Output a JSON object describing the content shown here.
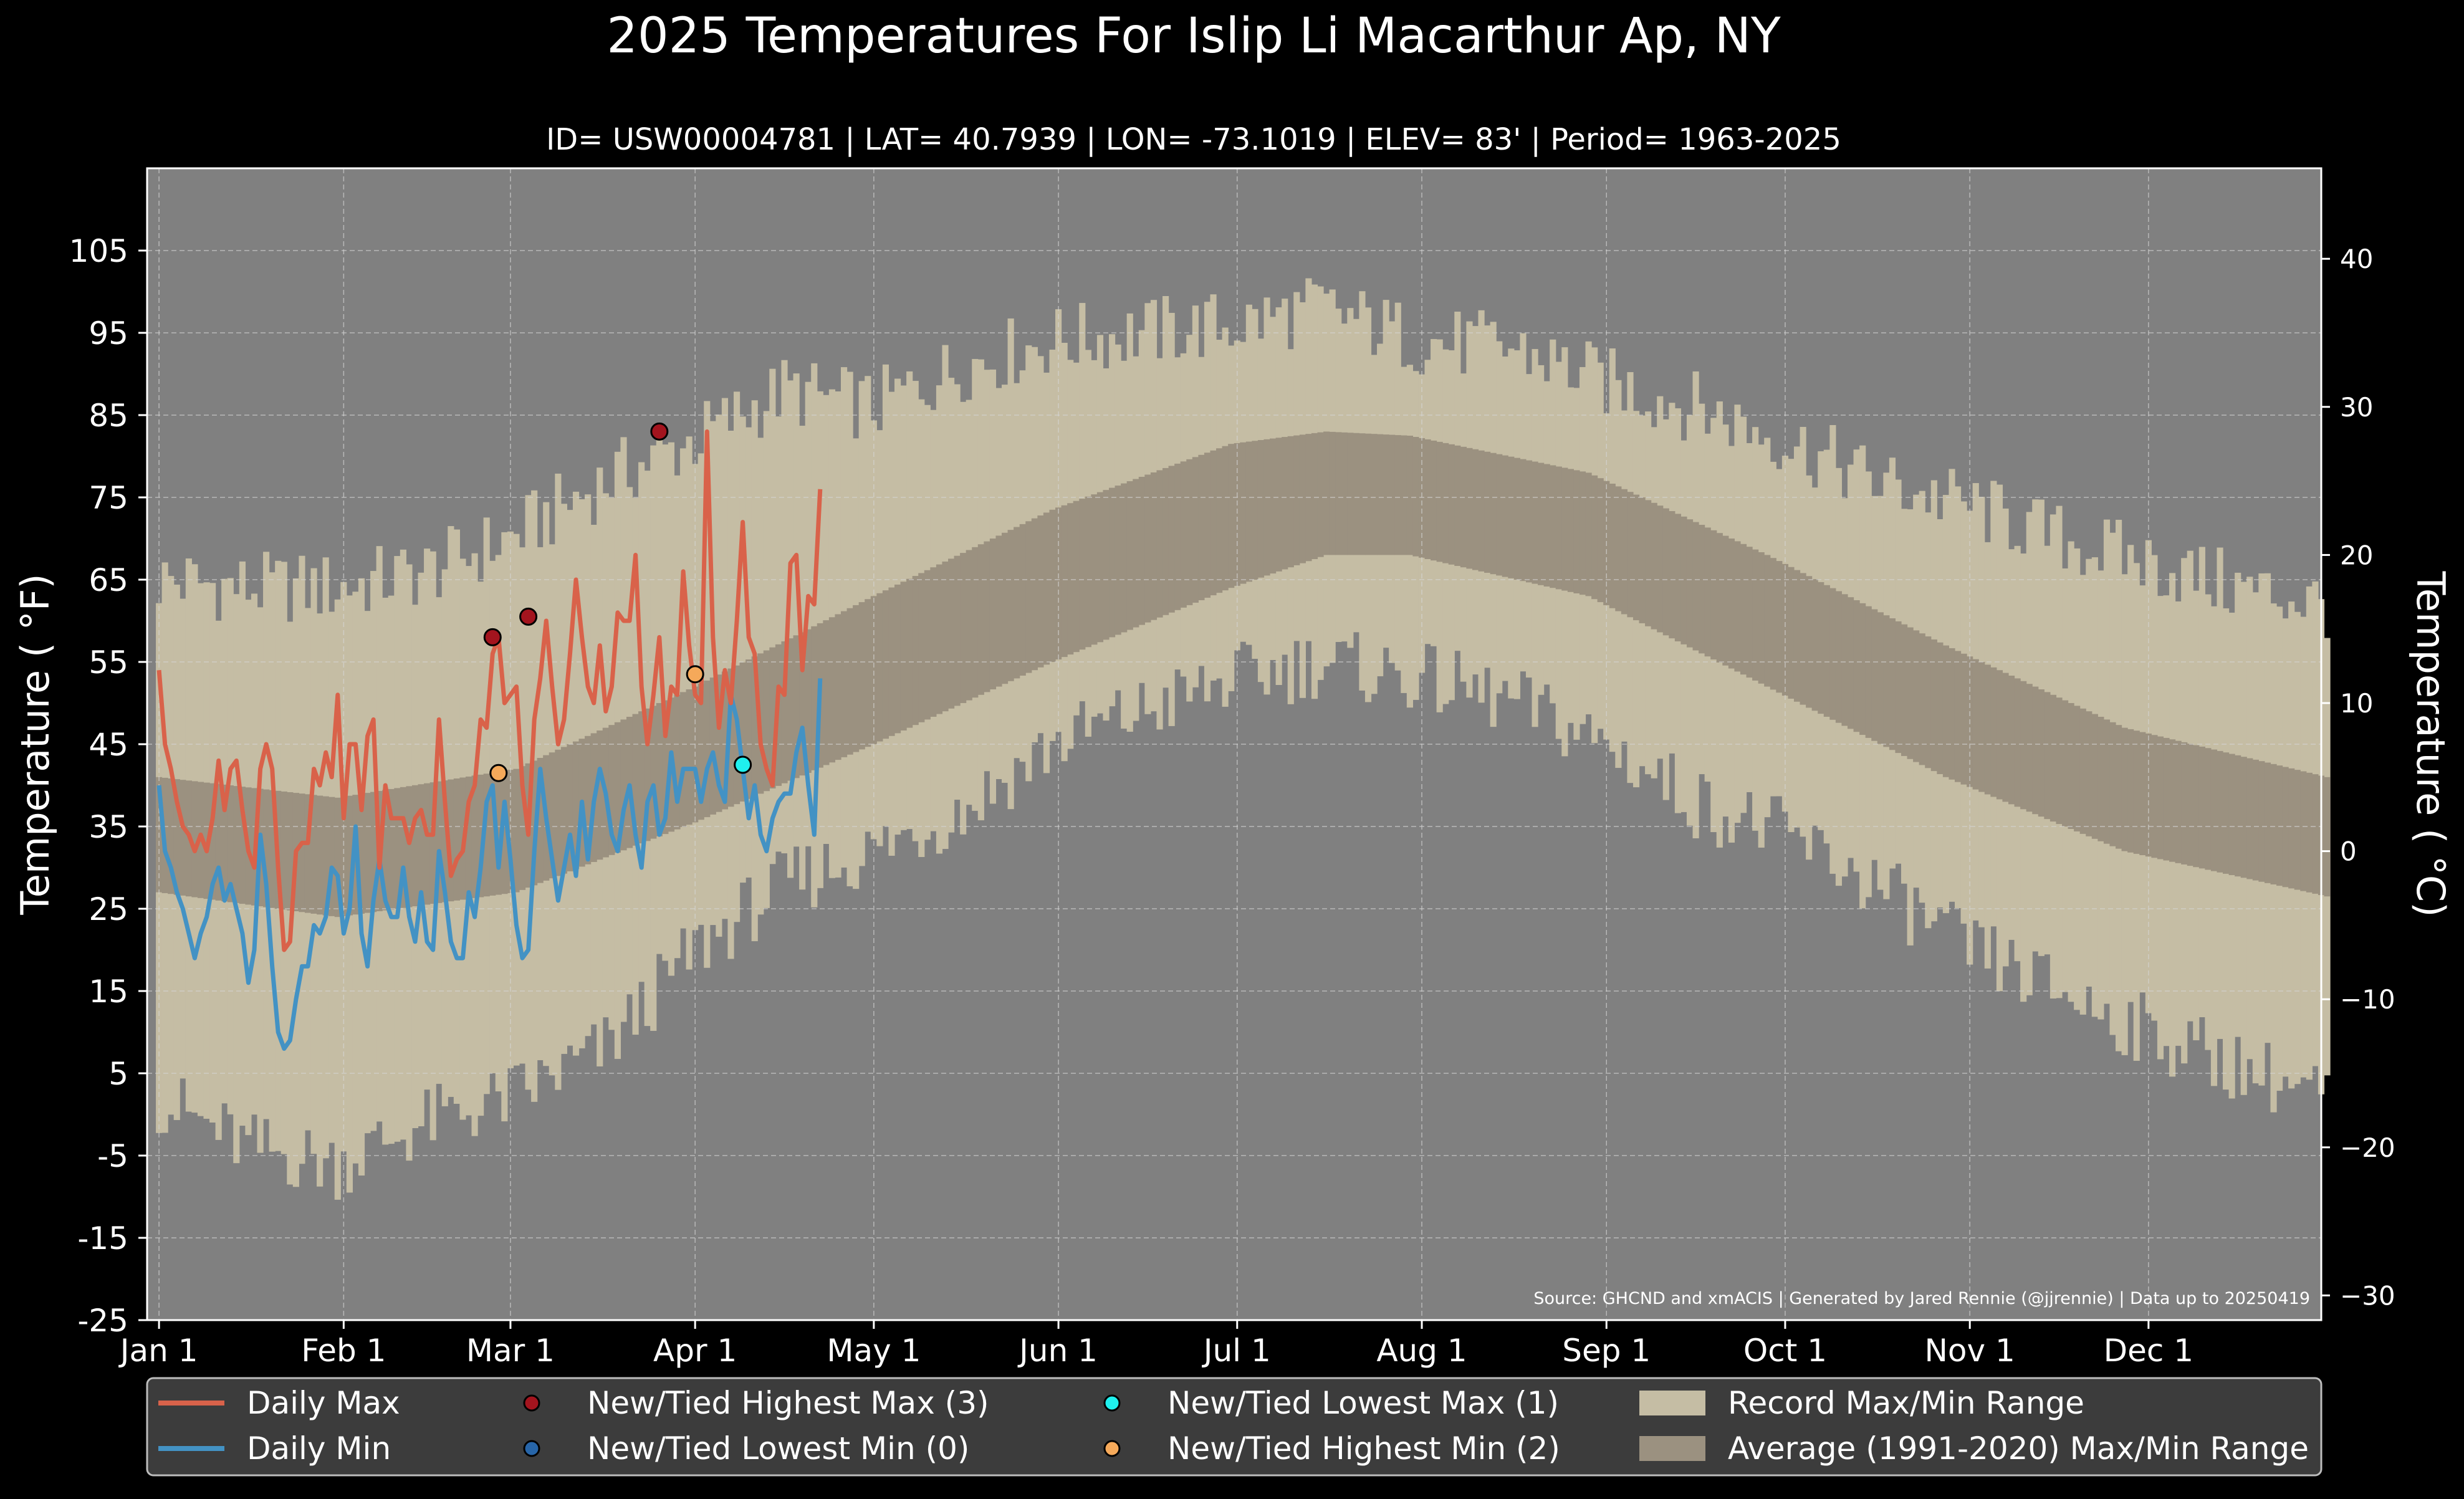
{
  "chart_data": {
    "type": "line",
    "title": "2025 Temperatures For Islip Li Macarthur Ap, NY",
    "subtitle": "ID= USW00004781 | LAT= 40.7939 | LON= -73.1019 | ELEV= 83' | Period= 1963-2025",
    "ylabel": "Temperature ( °F)",
    "ylabel_right": "Temperature ( °C)",
    "ylim": [
      -25,
      115
    ],
    "yticks": [
      -25,
      -15,
      -5,
      5,
      15,
      25,
      35,
      45,
      55,
      65,
      75,
      85,
      95,
      105
    ],
    "yticks_right": [
      -30,
      -20,
      -10,
      0,
      10,
      20,
      30,
      40
    ],
    "yticks_right_labels": [
      "−30",
      "−20",
      "−10",
      "0",
      "10",
      "20",
      "30",
      "40"
    ],
    "x_range_days": [
      -2,
      363
    ],
    "xticks": [
      {
        "label": "Jan 1",
        "day": 0
      },
      {
        "label": "Feb 1",
        "day": 31
      },
      {
        "label": "Mar 1",
        "day": 59
      },
      {
        "label": "Apr 1",
        "day": 90
      },
      {
        "label": "May 1",
        "day": 120
      },
      {
        "label": "Jun 1",
        "day": 151
      },
      {
        "label": "Jul 1",
        "day": 181
      },
      {
        "label": "Aug 1",
        "day": 212
      },
      {
        "label": "Sep 1",
        "day": 243
      },
      {
        "label": "Oct 1",
        "day": 273
      },
      {
        "label": "Nov 1",
        "day": 304
      },
      {
        "label": "Dec 1",
        "day": 334
      }
    ],
    "grid": true,
    "source": "Source: GHCND and xmACIS | Generated by Jared Rennie (@jjrennie) | Data up to 20250419",
    "daily_max": [
      54,
      45,
      42,
      38,
      35,
      34,
      32,
      34,
      32,
      36,
      43,
      37,
      42,
      43,
      37,
      32,
      30,
      42,
      45,
      42,
      30,
      20,
      21,
      32,
      33,
      33,
      42,
      40,
      44,
      41,
      51,
      36,
      45,
      45,
      37,
      46,
      48,
      30,
      40,
      36,
      36,
      36,
      33,
      36,
      37,
      34,
      34,
      48,
      38,
      29,
      31,
      32,
      38,
      40,
      48,
      47,
      56,
      58,
      50,
      51,
      52,
      40,
      34,
      48,
      53,
      60,
      52,
      45,
      48,
      56,
      65,
      58,
      52,
      50,
      57,
      49,
      52,
      61,
      60,
      60,
      68,
      52,
      45,
      51,
      58,
      46,
      52,
      51,
      66,
      57,
      51,
      50,
      83,
      58,
      47,
      54,
      50,
      60,
      72,
      58,
      56,
      45,
      42,
      40,
      52,
      51,
      67,
      68,
      54,
      63,
      62,
      76
    ],
    "daily_min": [
      40,
      32,
      30,
      27,
      25,
      22,
      19,
      22,
      24,
      28,
      30,
      26,
      28,
      25,
      22,
      16,
      20,
      34,
      28,
      18,
      10,
      8,
      9,
      14,
      18,
      18,
      23,
      22,
      24,
      30,
      29,
      22,
      25,
      35,
      22,
      18,
      26,
      31,
      26,
      24,
      24,
      30,
      24,
      21,
      27,
      21,
      20,
      32,
      27,
      21,
      19,
      19,
      27,
      24,
      30,
      38,
      40,
      30,
      38,
      31,
      23,
      19,
      20,
      32,
      42,
      36,
      31,
      26,
      30,
      34,
      29,
      38,
      31,
      38,
      42,
      39,
      34,
      32,
      37,
      40,
      34,
      30,
      38,
      40,
      34,
      36,
      44,
      38,
      42,
      42,
      42,
      38,
      42,
      44,
      40,
      38,
      51,
      48,
      42,
      36,
      40,
      34,
      32,
      36,
      38,
      39,
      39,
      44,
      47,
      40,
      34,
      53
    ],
    "average_range": {
      "days": [
        0,
        30,
        60,
        90,
        120,
        150,
        180,
        196,
        210,
        240,
        270,
        300,
        330,
        364
      ],
      "max": [
        41,
        38.5,
        42,
        52,
        63,
        73.5,
        81.5,
        83,
        82.5,
        78,
        68,
        57,
        47,
        41
      ],
      "min": [
        27,
        24,
        27,
        35.5,
        45,
        55,
        64,
        68,
        68,
        63,
        52,
        41,
        32,
        26.5
      ]
    },
    "record_range": {
      "days": [
        0,
        15,
        30,
        45,
        59,
        75,
        90,
        105,
        120,
        135,
        150,
        165,
        181,
        195,
        212,
        228,
        243,
        258,
        273,
        288,
        304,
        319,
        334,
        349,
        364
      ],
      "max": [
        65,
        64,
        64,
        66,
        70,
        77,
        82,
        88,
        86,
        91,
        94,
        95,
        96,
        98,
        94,
        93,
        89,
        86,
        82,
        77,
        74,
        70,
        67,
        64,
        62
      ],
      "min": [
        2,
        -4,
        -6,
        -1,
        2,
        8,
        20,
        28,
        32,
        37,
        45,
        49,
        53,
        55,
        53,
        50,
        45,
        38,
        34,
        28,
        20,
        15,
        10,
        6,
        2
      ]
    },
    "new_tied_highest_max": [
      {
        "day": 56,
        "temp": 58
      },
      {
        "day": 62,
        "temp": 60.5
      },
      {
        "day": 84,
        "temp": 83
      }
    ],
    "new_tied_lowest_min": [],
    "new_tied_lowest_max": [
      {
        "day": 98,
        "temp": 42.5
      }
    ],
    "new_tied_highest_min": [
      {
        "day": 57,
        "temp": 41.5
      },
      {
        "day": 90,
        "temp": 53.5
      }
    ],
    "colors": {
      "page_bg": "#000000",
      "plot_bg": "#808080",
      "record_range": "#c5bda4",
      "average_range": "#9b9180",
      "daily_max": "#d9624a",
      "daily_min": "#4392c4",
      "highest_max": "#a3141e",
      "lowest_min": "#2765a8",
      "lowest_max": "#1ff0ee",
      "highest_min": "#f5a95a",
      "legend_bg": "#3c3c3c"
    },
    "legend_placement": "bottom",
    "legend": [
      {
        "label": "Daily Max",
        "kind": "line",
        "color": "#d9624a"
      },
      {
        "label": "Daily Min",
        "kind": "line",
        "color": "#4392c4"
      },
      {
        "label": "New/Tied Highest Max (3)",
        "kind": "marker",
        "color": "#a3141e"
      },
      {
        "label": "New/Tied Lowest Min (0)",
        "kind": "marker",
        "color": "#2765a8"
      },
      {
        "label": "New/Tied Lowest Max (1)",
        "kind": "marker",
        "color": "#1ff0ee"
      },
      {
        "label": "New/Tied Highest Min (2)",
        "kind": "marker",
        "color": "#f5a95a"
      },
      {
        "label": "Record Max/Min Range",
        "kind": "patch",
        "color": "#c5bda4"
      },
      {
        "label": "Average (1991-2020) Max/Min Range",
        "kind": "patch",
        "color": "#9b9180"
      }
    ]
  }
}
